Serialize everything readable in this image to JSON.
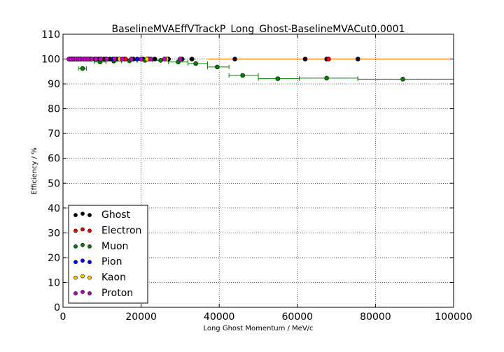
{
  "chart_data": {
    "type": "scatter",
    "title": "BaselineMVAEffVTrackP_Long_Ghost-BaselineMVACut0.0001",
    "xlabel": "Long Ghost Momentum / MeV/c",
    "ylabel": "Efficiency / %",
    "xlim": [
      0,
      100000
    ],
    "ylim": [
      0,
      110
    ],
    "xticks": [
      "0",
      "20000",
      "40000",
      "60000",
      "80000",
      "100000"
    ],
    "xtick_values": [
      0,
      20000,
      40000,
      60000,
      80000,
      100000
    ],
    "yticks": [
      "0",
      "10",
      "20",
      "30",
      "40",
      "50",
      "60",
      "70",
      "80",
      "90",
      "100",
      "110"
    ],
    "ytick_values": [
      0,
      10,
      20,
      30,
      40,
      50,
      60,
      70,
      80,
      90,
      100,
      110
    ],
    "grid": true,
    "legend_position": "lower-left",
    "series": [
      {
        "name": "Ghost",
        "color": "#000000",
        "points": [
          {
            "x": 1600,
            "y": 100
          },
          {
            "x": 2200,
            "y": 100
          },
          {
            "x": 2800,
            "y": 100
          },
          {
            "x": 3400,
            "y": 100
          },
          {
            "x": 4000,
            "y": 100
          },
          {
            "x": 4700,
            "y": 100
          },
          {
            "x": 5400,
            "y": 100
          },
          {
            "x": 6200,
            "y": 100
          },
          {
            "x": 7100,
            "y": 100
          },
          {
            "x": 8100,
            "y": 100
          },
          {
            "x": 9200,
            "y": 100
          },
          {
            "x": 10500,
            "y": 100
          },
          {
            "x": 12000,
            "y": 100
          },
          {
            "x": 13800,
            "y": 100
          },
          {
            "x": 15800,
            "y": 100
          },
          {
            "x": 18000,
            "y": 100
          },
          {
            "x": 20500,
            "y": 100
          },
          {
            "x": 23500,
            "y": 100
          },
          {
            "x": 27000,
            "y": 100
          },
          {
            "x": 30500,
            "y": 100
          },
          {
            "x": 33000,
            "y": 100
          },
          {
            "x": 44000,
            "y": 100
          },
          {
            "x": 62000,
            "y": 100
          },
          {
            "x": 67500,
            "y": 100
          },
          {
            "x": 75500,
            "y": 100
          }
        ]
      },
      {
        "name": "Electron",
        "color": "#ff0000",
        "points": [
          {
            "x": 2000,
            "y": 100
          },
          {
            "x": 3000,
            "y": 100
          },
          {
            "x": 4500,
            "y": 100
          },
          {
            "x": 7000,
            "y": 100
          },
          {
            "x": 11000,
            "y": 100
          },
          {
            "x": 16000,
            "y": 100
          },
          {
            "x": 22000,
            "y": 100
          },
          {
            "x": 68000,
            "y": 100
          }
        ]
      },
      {
        "name": "Muon",
        "color": "#008000",
        "points": [
          {
            "x": 5000,
            "y": 96.2
          },
          {
            "x": 9500,
            "y": 98.8
          },
          {
            "x": 13000,
            "y": 99.2
          },
          {
            "x": 17000,
            "y": 99.3
          },
          {
            "x": 21000,
            "y": 99.5
          },
          {
            "x": 25000,
            "y": 99.5
          },
          {
            "x": 29500,
            "y": 98.8
          },
          {
            "x": 34000,
            "y": 98.2
          },
          {
            "x": 39500,
            "y": 96.8
          },
          {
            "x": 46000,
            "y": 93.4
          },
          {
            "x": 55000,
            "y": 92.1
          },
          {
            "x": 67500,
            "y": 92.3
          },
          {
            "x": 87000,
            "y": 91.9
          }
        ],
        "xerr_bins": [
          [
            4000,
            6000
          ],
          [
            8000,
            11000
          ],
          [
            11000,
            15000
          ],
          [
            15000,
            19000
          ],
          [
            19000,
            23000
          ],
          [
            23000,
            27000
          ],
          [
            27000,
            32000
          ],
          [
            32000,
            37000
          ],
          [
            37000,
            42500
          ],
          [
            42500,
            50000
          ],
          [
            50000,
            60500
          ],
          [
            60500,
            75500
          ],
          [
            75500,
            100000
          ]
        ]
      },
      {
        "name": "Pion",
        "color": "#0000ff",
        "points": [
          {
            "x": 1800,
            "y": 100
          },
          {
            "x": 2600,
            "y": 100
          },
          {
            "x": 3600,
            "y": 100
          },
          {
            "x": 5800,
            "y": 100
          },
          {
            "x": 8600,
            "y": 100
          },
          {
            "x": 12800,
            "y": 100
          },
          {
            "x": 19000,
            "y": 100
          }
        ]
      },
      {
        "name": "Kaon",
        "color": "#ffcc00",
        "points": [
          {
            "x": 2400,
            "y": 100
          },
          {
            "x": 4200,
            "y": 100
          },
          {
            "x": 6600,
            "y": 100
          },
          {
            "x": 9800,
            "y": 100
          },
          {
            "x": 14500,
            "y": 100
          },
          {
            "x": 21500,
            "y": 100
          },
          {
            "x": 26500,
            "y": 100
          }
        ]
      },
      {
        "name": "Proton",
        "color": "#bf00bf",
        "points": [
          {
            "x": 1500,
            "y": 100
          },
          {
            "x": 2100,
            "y": 100
          },
          {
            "x": 2700,
            "y": 100
          },
          {
            "x": 3300,
            "y": 100
          },
          {
            "x": 3900,
            "y": 100
          },
          {
            "x": 4400,
            "y": 100
          },
          {
            "x": 5100,
            "y": 100
          },
          {
            "x": 5700,
            "y": 100
          },
          {
            "x": 6400,
            "y": 100
          },
          {
            "x": 7400,
            "y": 100
          },
          {
            "x": 8400,
            "y": 100
          },
          {
            "x": 9600,
            "y": 100
          },
          {
            "x": 11200,
            "y": 100
          },
          {
            "x": 13200,
            "y": 100
          },
          {
            "x": 15200,
            "y": 100
          },
          {
            "x": 17500,
            "y": 100
          },
          {
            "x": 20000,
            "y": 100
          },
          {
            "x": 22500,
            "y": 100
          },
          {
            "x": 26000,
            "y": 100
          },
          {
            "x": 30000,
            "y": 100
          }
        ]
      }
    ]
  }
}
